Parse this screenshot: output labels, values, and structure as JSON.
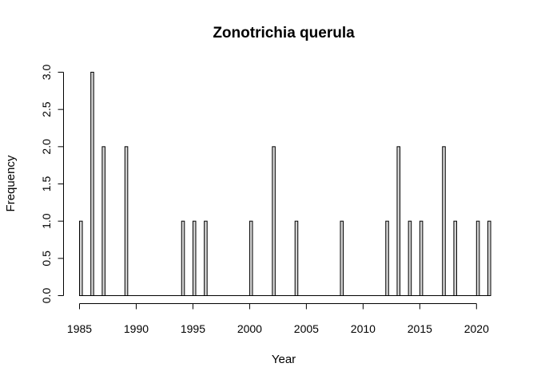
{
  "chart_data": {
    "type": "bar",
    "title": "Zonotrichia querula",
    "xlabel": "Year",
    "ylabel": "Frequency",
    "xlim": [
      1985,
      2021
    ],
    "ylim": [
      0,
      3
    ],
    "xticks": [
      1985,
      1990,
      1995,
      2000,
      2005,
      2010,
      2015,
      2020
    ],
    "yticks": [
      "0.0",
      "0.5",
      "1.0",
      "1.5",
      "2.0",
      "2.5",
      "3.0"
    ],
    "grid": false,
    "bar_color": "#d3d3d3",
    "years": [
      1985,
      1986,
      1987,
      1988,
      1989,
      1990,
      1991,
      1992,
      1993,
      1994,
      1995,
      1996,
      1997,
      1998,
      1999,
      2000,
      2001,
      2002,
      2003,
      2004,
      2005,
      2006,
      2007,
      2008,
      2009,
      2010,
      2011,
      2012,
      2013,
      2014,
      2015,
      2016,
      2017,
      2018,
      2019,
      2020,
      2021
    ],
    "values": [
      1,
      3,
      2,
      0,
      2,
      0,
      0,
      0,
      0,
      1,
      1,
      1,
      0,
      0,
      0,
      1,
      0,
      2,
      0,
      1,
      0,
      0,
      0,
      1,
      0,
      0,
      0,
      1,
      2,
      1,
      1,
      0,
      2,
      1,
      0,
      1,
      1
    ]
  }
}
